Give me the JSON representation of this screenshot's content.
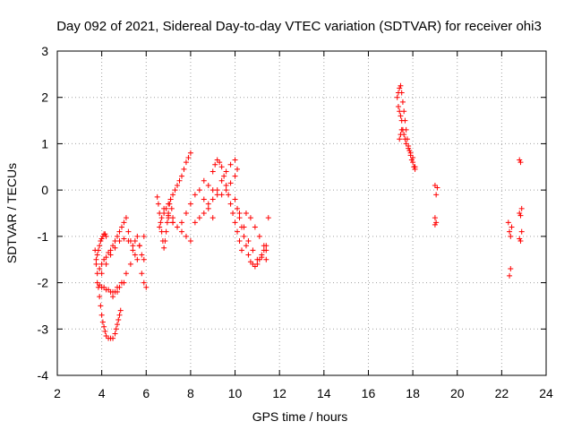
{
  "chart_data": {
    "type": "scatter",
    "title": "Day 092 of 2021, Sidereal Day-to-day VTEC variation (SDTVAR) for receiver ohi3",
    "xlabel": "GPS time / hours",
    "ylabel": "SDTVAR / TECUs",
    "xlim": [
      2,
      24
    ],
    "ylim": [
      -4,
      3
    ],
    "xticks": [
      2,
      4,
      6,
      8,
      10,
      12,
      14,
      16,
      18,
      20,
      22,
      24
    ],
    "yticks": [
      -4,
      -3,
      -2,
      -1,
      0,
      1,
      2,
      3
    ],
    "grid": true,
    "marker": "+",
    "color": "#ff0000",
    "series": [
      {
        "name": "SDTVAR",
        "x": [
          3.7,
          3.75,
          3.8,
          3.85,
          3.9,
          3.95,
          4.0,
          4.05,
          4.1,
          4.15,
          4.2,
          4.3,
          4.4,
          4.5,
          4.6,
          4.65,
          4.7,
          4.75,
          4.8,
          4.85,
          3.75,
          3.8,
          3.85,
          3.9,
          3.95,
          4.0,
          4.05,
          4.1,
          4.15,
          4.2,
          3.8,
          3.9,
          4.0,
          4.1,
          4.2,
          4.3,
          4.4,
          4.5,
          4.6,
          4.7,
          4.8,
          4.9,
          5.0,
          3.9,
          4.0,
          4.1,
          4.2,
          4.3,
          4.4,
          4.5,
          4.6,
          4.7,
          4.8,
          4.9,
          5.0,
          5.1,
          5.2,
          5.3,
          5.4,
          5.5,
          5.6,
          5.7,
          5.8,
          5.9,
          4.0,
          4.2,
          4.4,
          4.6,
          4.8,
          5.0,
          5.2,
          5.4,
          5.6,
          5.8,
          5.9,
          6.0,
          4.5,
          4.7,
          4.9,
          5.1,
          5.3,
          5.5,
          5.7,
          5.9,
          6.5,
          6.55,
          6.6,
          6.65,
          6.7,
          6.75,
          6.8,
          6.85,
          6.9,
          6.95,
          7.0,
          7.05,
          7.1,
          7.15,
          7.2,
          6.6,
          6.7,
          6.8,
          6.9,
          7.0,
          7.1,
          7.2,
          7.3,
          7.4,
          7.5,
          7.6,
          7.7,
          7.8,
          7.9,
          8.0,
          6.8,
          7.0,
          7.2,
          7.4,
          7.6,
          7.8,
          8.0,
          8.2,
          8.4,
          8.6,
          8.8,
          9.0,
          7.0,
          7.2,
          7.4,
          7.6,
          7.8,
          8.0,
          8.2,
          8.4,
          8.6,
          8.8,
          9.0,
          9.2,
          9.4,
          9.6,
          9.8,
          10.0,
          8.6,
          8.8,
          9.0,
          9.2,
          9.4,
          9.6,
          9.8,
          10.0,
          10.1,
          9.0,
          9.1,
          9.2,
          9.3,
          9.4,
          9.5,
          9.6,
          9.7,
          9.8,
          9.9,
          10.0,
          10.1,
          10.2,
          10.3,
          10.0,
          10.1,
          10.2,
          10.3,
          10.4,
          10.5,
          10.6,
          10.7,
          10.8,
          10.9,
          11.0,
          11.1,
          11.2,
          11.3,
          11.4,
          10.2,
          10.4,
          10.6,
          10.8,
          11.0,
          11.2,
          11.4,
          11.5,
          10.5,
          10.7,
          10.9,
          11.1,
          11.3,
          11.4,
          17.3,
          17.35,
          17.4,
          17.45,
          17.5,
          17.55,
          17.6,
          17.65,
          17.7,
          17.75,
          17.8,
          17.85,
          17.9,
          17.95,
          18.0,
          18.05,
          18.1,
          17.35,
          17.4,
          17.45,
          17.5,
          17.55,
          17.6,
          17.65,
          17.7,
          17.8,
          17.9,
          18.0,
          18.1,
          17.4,
          17.45,
          17.5,
          19.0,
          19.05,
          19.1,
          19.0,
          19.05,
          19.0,
          22.3,
          22.35,
          22.4,
          22.45,
          22.4,
          22.35,
          22.8,
          22.85,
          22.9,
          22.8,
          22.85,
          22.9,
          22.8,
          22.85
        ],
        "y": [
          -1.3,
          -1.5,
          -1.8,
          -2.1,
          -2.3,
          -2.5,
          -2.7,
          -2.85,
          -2.95,
          -3.05,
          -3.15,
          -3.2,
          -3.2,
          -3.2,
          -3.1,
          -3.0,
          -2.9,
          -2.8,
          -2.7,
          -2.6,
          -1.6,
          -1.4,
          -1.3,
          -1.2,
          -1.1,
          -1.05,
          -1.0,
          -0.95,
          -0.95,
          -1.0,
          -2.0,
          -2.05,
          -2.1,
          -2.1,
          -2.15,
          -2.15,
          -2.2,
          -2.2,
          -2.2,
          -2.1,
          -2.1,
          -2.0,
          -2.0,
          -1.7,
          -1.6,
          -1.5,
          -1.45,
          -1.35,
          -1.3,
          -1.2,
          -1.1,
          -1.0,
          -0.9,
          -0.8,
          -0.7,
          -0.6,
          -0.9,
          -1.1,
          -1.2,
          -1.1,
          -1.0,
          -1.2,
          -1.4,
          -1.5,
          -1.8,
          -1.6,
          -1.4,
          -1.25,
          -1.1,
          -1.05,
          -1.1,
          -1.3,
          -1.5,
          -1.8,
          -2.0,
          -2.1,
          -2.3,
          -2.2,
          -2.0,
          -1.8,
          -1.6,
          -1.4,
          -1.2,
          -1.0,
          -0.15,
          -0.3,
          -0.5,
          -0.7,
          -0.9,
          -1.1,
          -1.25,
          -1.1,
          -0.9,
          -0.7,
          -0.5,
          -0.3,
          -0.2,
          -0.4,
          -0.6,
          -0.8,
          -0.6,
          -0.5,
          -0.4,
          -0.3,
          -0.2,
          -0.1,
          0.0,
          0.1,
          0.2,
          0.3,
          0.45,
          0.6,
          0.7,
          0.8,
          -0.4,
          -0.55,
          -0.7,
          -0.8,
          -0.7,
          -0.5,
          -0.3,
          -0.1,
          0.0,
          -0.2,
          -0.4,
          -0.6,
          -0.6,
          -0.7,
          -0.8,
          -0.9,
          -1.0,
          -1.1,
          -0.7,
          -0.6,
          -0.5,
          -0.3,
          -0.2,
          0.0,
          0.2,
          0.4,
          0.55,
          0.65,
          0.2,
          0.1,
          0.0,
          -0.1,
          -0.1,
          0.0,
          0.15,
          0.3,
          0.45,
          0.4,
          0.55,
          0.65,
          0.6,
          0.5,
          0.3,
          0.1,
          -0.1,
          -0.3,
          -0.5,
          -0.7,
          -0.9,
          -1.1,
          -1.3,
          -0.2,
          -0.4,
          -0.6,
          -0.8,
          -1.0,
          -1.2,
          -1.4,
          -1.55,
          -1.6,
          -1.65,
          -1.6,
          -1.5,
          -1.4,
          -1.3,
          -1.2,
          -0.5,
          -0.8,
          -1.1,
          -1.3,
          -1.5,
          -1.45,
          -1.3,
          -0.6,
          -0.5,
          -0.6,
          -0.8,
          -1.0,
          -1.2,
          -1.5,
          2.0,
          2.1,
          2.2,
          2.25,
          2.1,
          1.9,
          1.7,
          1.5,
          1.3,
          1.1,
          0.95,
          0.85,
          0.75,
          0.65,
          0.6,
          0.5,
          0.45,
          1.8,
          1.7,
          1.6,
          1.5,
          1.3,
          1.2,
          1.1,
          1.0,
          0.9,
          0.8,
          0.7,
          0.5,
          1.1,
          1.2,
          1.3,
          0.1,
          -0.1,
          0.05,
          -0.6,
          -0.7,
          -0.75,
          -0.7,
          -0.9,
          -1.0,
          -0.8,
          -1.7,
          -1.85,
          0.65,
          0.6,
          -0.4,
          -0.5,
          -0.55,
          -0.9,
          -1.05,
          -1.1
        ]
      }
    ]
  }
}
